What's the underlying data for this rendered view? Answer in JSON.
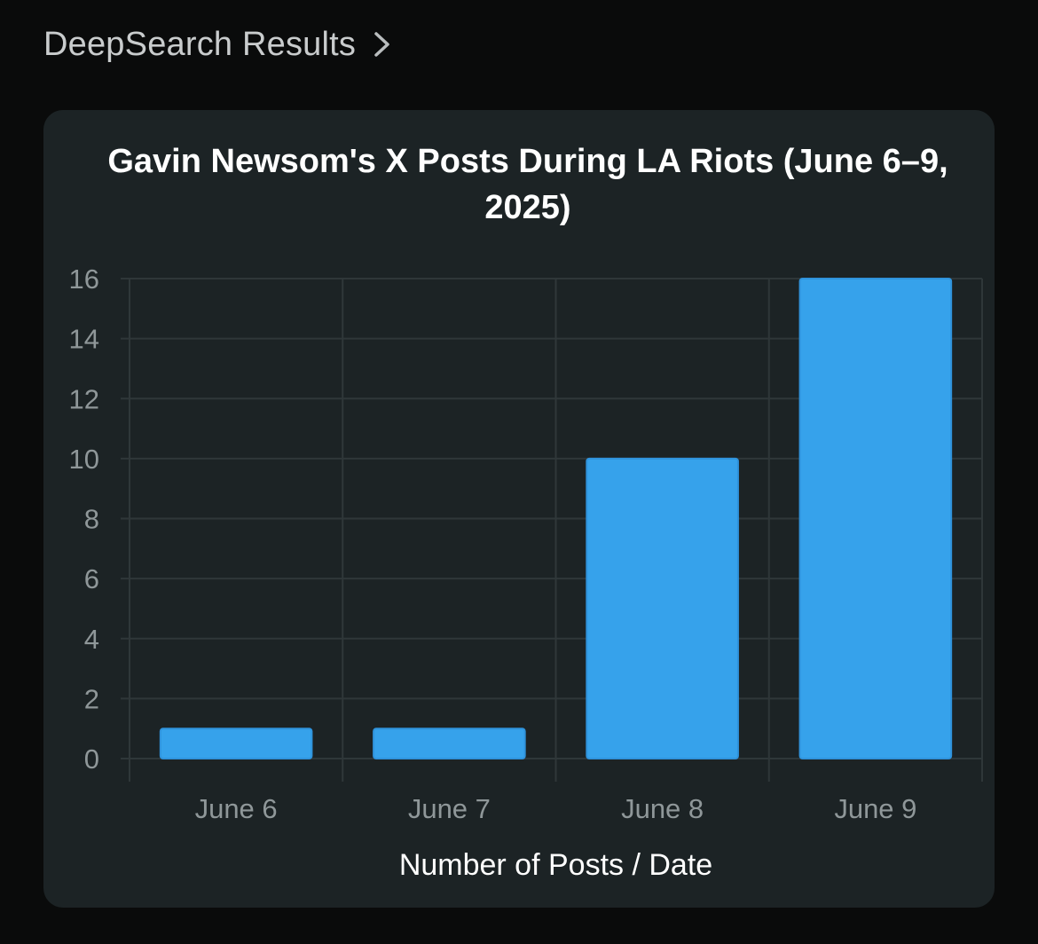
{
  "header": {
    "title": "DeepSearch Results",
    "chevron_icon": "chevron-right-icon"
  },
  "colors": {
    "page_background": "#0a0b0b",
    "card_background": "#1c2325",
    "bar_fill": "#36a2eb",
    "grid": "#2f3739",
    "tick_text": "#8f9799",
    "title_text": "#ffffff"
  },
  "chart_data": {
    "type": "bar",
    "title": "Gavin Newsom's X Posts During LA Riots (June 6–9, 2025)",
    "categories": [
      "June 6",
      "June 7",
      "June 8",
      "June 9"
    ],
    "values": [
      1,
      1,
      10,
      16
    ],
    "xlabel": "Number of Posts / Date",
    "ylabel": "",
    "ylim": [
      0,
      16
    ],
    "yticks": [
      0,
      2,
      4,
      6,
      8,
      10,
      12,
      14,
      16
    ],
    "grid": true,
    "legend": false
  }
}
